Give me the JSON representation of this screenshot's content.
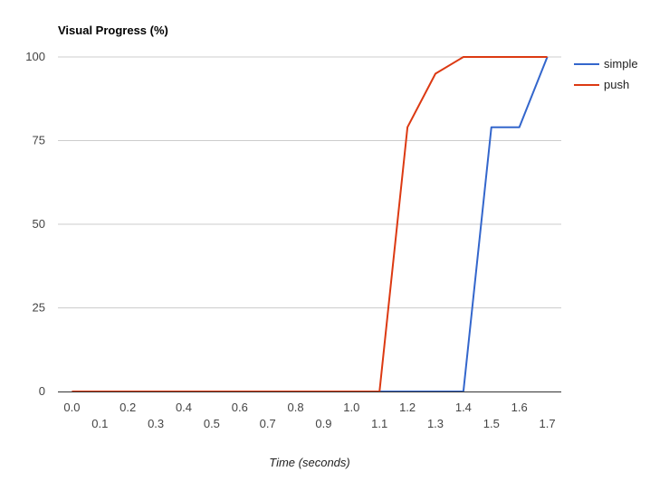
{
  "chart_data": {
    "type": "line",
    "title": "Visual Progress (%)",
    "xlabel": "Time (seconds)",
    "ylabel": "",
    "x": [
      0.0,
      0.1,
      0.2,
      0.3,
      0.4,
      0.5,
      0.6,
      0.7,
      0.8,
      0.9,
      1.0,
      1.1,
      1.2,
      1.3,
      1.4,
      1.5,
      1.6,
      1.7
    ],
    "x_tick_labels": [
      "0.0",
      "0.1",
      "0.2",
      "0.3",
      "0.4",
      "0.5",
      "0.6",
      "0.7",
      "0.8",
      "0.9",
      "1.0",
      "1.1",
      "1.2",
      "1.3",
      "1.4",
      "1.5",
      "1.6",
      "1.7"
    ],
    "xlim": [
      -0.05,
      1.75
    ],
    "ylim": [
      0,
      100
    ],
    "y_ticks": [
      0,
      25,
      50,
      75,
      100
    ],
    "y_tick_labels": [
      "0",
      "25",
      "50",
      "75",
      "100"
    ],
    "grid": true,
    "legend_position": "right",
    "series": [
      {
        "name": "simple",
        "color": "#3366cc",
        "values": [
          0,
          0,
          0,
          0,
          0,
          0,
          0,
          0,
          0,
          0,
          0,
          0,
          0,
          0,
          0,
          79,
          79,
          100
        ]
      },
      {
        "name": "push",
        "color": "#dc3912",
        "values": [
          0,
          0,
          0,
          0,
          0,
          0,
          0,
          0,
          0,
          0,
          0,
          0,
          79,
          95,
          100,
          100,
          100,
          100
        ]
      }
    ]
  }
}
